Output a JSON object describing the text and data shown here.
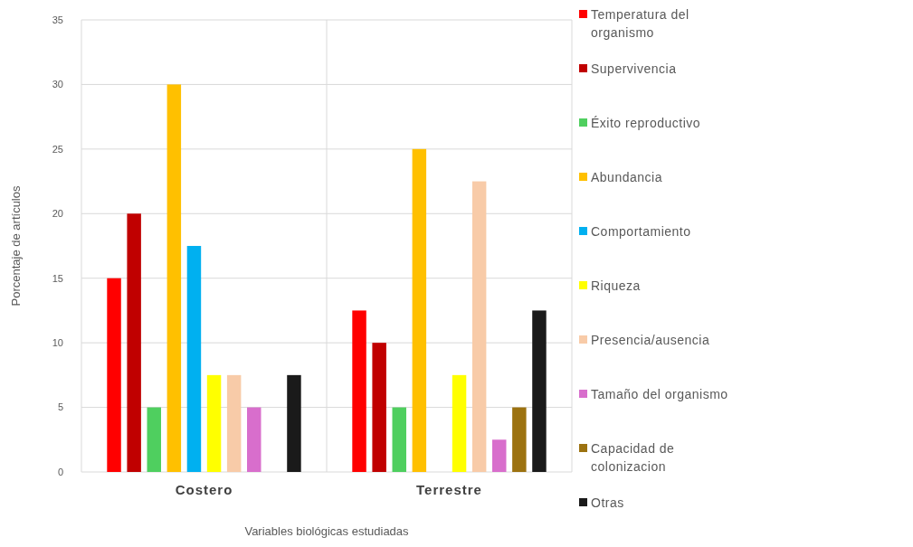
{
  "chart_data": {
    "type": "bar",
    "xlabel": "Variables biológicas estudiadas",
    "ylabel": "Porcentaje de artículos",
    "categories": [
      "Costero",
      "Terrestre"
    ],
    "series": [
      {
        "name": "Temperatura del organismo",
        "color": "#ff0000",
        "values": [
          15,
          12.5
        ]
      },
      {
        "name": "Supervivencia",
        "color": "#c00000",
        "values": [
          20,
          10
        ]
      },
      {
        "name": "Éxito reproductivo",
        "color": "#4fcf5f",
        "values": [
          5,
          5
        ]
      },
      {
        "name": "Abundancia",
        "color": "#ffc000",
        "values": [
          30,
          25
        ]
      },
      {
        "name": "Comportamiento",
        "color": "#00b0f0",
        "values": [
          17.5,
          0
        ]
      },
      {
        "name": "Riqueza",
        "color": "#ffff00",
        "values": [
          7.5,
          7.5
        ]
      },
      {
        "name": "Presencia/ausencia",
        "color": "#f8cba8",
        "values": [
          7.5,
          22.5
        ]
      },
      {
        "name": "Tamaño del organismo",
        "color": "#d86ecc",
        "values": [
          5,
          2.5
        ]
      },
      {
        "name": "Capacidad de colonizacion",
        "color": "#9c7210",
        "values": [
          0,
          5
        ]
      },
      {
        "name": "Otras",
        "color": "#1a1a1a",
        "values": [
          7.5,
          12.5
        ]
      }
    ],
    "ylim": [
      0,
      35
    ],
    "yticks": [
      0,
      5,
      10,
      15,
      20,
      25,
      30,
      35
    ],
    "grid": true,
    "legend": "right"
  }
}
